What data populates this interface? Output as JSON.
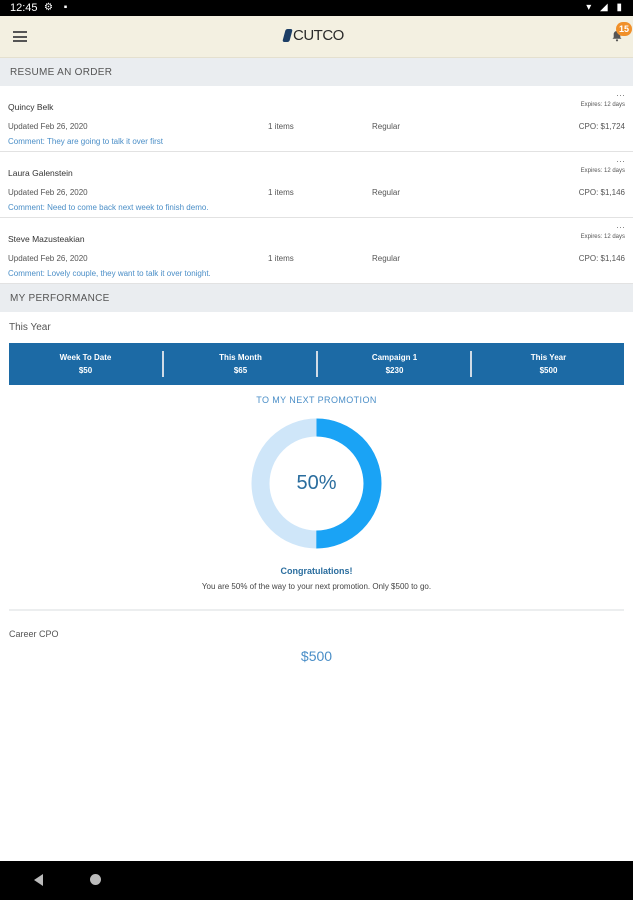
{
  "status_bar": {
    "time": "12:45",
    "left_icons": "⚙ ▪",
    "right_icons": "▾ ◢ ▮"
  },
  "app": {
    "logo": "CUTCO",
    "notification_count": "15"
  },
  "resume": {
    "heading": "RESUME AN ORDER",
    "orders": [
      {
        "name": "Quincy Belk",
        "updated": "Updated Feb 26, 2020",
        "comment": "Comment: They are going to talk it over first",
        "items": "1 items",
        "type": "Regular",
        "more": "···",
        "expires": "Expires: 12 days",
        "cpo": "CPO: $1,724"
      },
      {
        "name": "Laura Galenstein",
        "updated": "Updated Feb 26, 2020",
        "comment": "Comment: Need to come back next week to finish demo.",
        "items": "1 items",
        "type": "Regular",
        "more": "···",
        "expires": "Expires: 12 days",
        "cpo": "CPO: $1,146"
      },
      {
        "name": "Steve Mazusteakian",
        "updated": "Updated Feb 26, 2020",
        "comment": "Comment: Lovely couple, they want to talk it over tonight.",
        "items": "1 items",
        "type": "Regular",
        "more": "···",
        "expires": "Expires: 12 days",
        "cpo": "CPO: $1,146"
      }
    ]
  },
  "performance": {
    "heading": "MY PERFORMANCE",
    "period_label": "This Year",
    "stats": [
      {
        "label": "Week To Date",
        "value": "$50"
      },
      {
        "label": "This Month",
        "value": "$65"
      },
      {
        "label": "Campaign 1",
        "value": "$230"
      },
      {
        "label": "This Year",
        "value": "$500"
      }
    ],
    "promotion": {
      "title": "TO MY NEXT PROMOTION",
      "percent_label": "50%",
      "progress": 0.5,
      "congrats": "Congratulations!",
      "message": "You are 50% of the way to your next promotion. Only $500 to go."
    },
    "career": {
      "label": "Career CPO",
      "value": "$500"
    }
  },
  "colors": {
    "accent": "#1c6aa5",
    "donut_fill": "#1aa3f5",
    "donut_track": "#cfe6f9",
    "link": "#4a8ec7",
    "badge": "#f0902a"
  }
}
